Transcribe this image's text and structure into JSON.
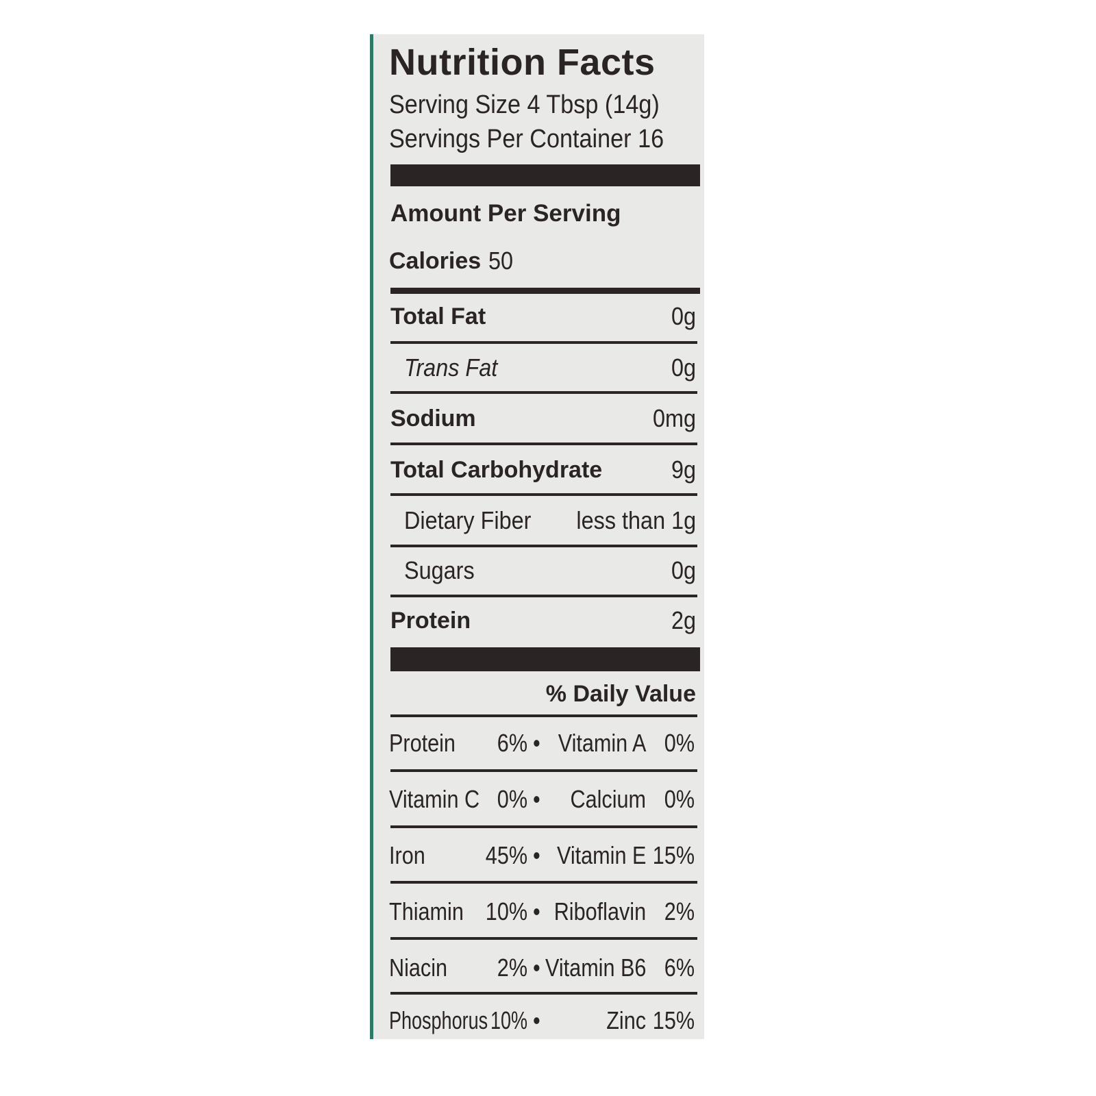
{
  "label": {
    "title": "Nutrition Facts",
    "serving_size": "Serving Size 4 Tbsp (14g)",
    "servings_per_container": "Servings Per Container 16",
    "amount_per_serving": "Amount Per Serving",
    "calories_label": "Calories",
    "calories_value": "50",
    "nutrients": [
      {
        "name": "Total Fat",
        "value": "0g",
        "bold": true
      },
      {
        "name": "Trans Fat",
        "value": "0g",
        "bold": false
      },
      {
        "name": "Sodium",
        "value": "0mg",
        "bold": true
      },
      {
        "name": "Total Carbohydrate",
        "value": "9g",
        "bold": true
      },
      {
        "name": "Dietary Fiber",
        "value": "less than 1g",
        "bold": false
      },
      {
        "name": "Sugars",
        "value": "0g",
        "bold": false
      },
      {
        "name": "Protein",
        "value": "2g",
        "bold": true
      }
    ],
    "daily_value_header": "% Daily Value",
    "bullet": "•",
    "vitamins": [
      {
        "left_name": "Protein",
        "left_value": "6%",
        "right_name": "Vitamin A",
        "right_value": "0%"
      },
      {
        "left_name": "Vitamin C",
        "left_value": "0%",
        "right_name": "Calcium",
        "right_value": "0%"
      },
      {
        "left_name": "Iron",
        "left_value": "45%",
        "right_name": "Vitamin E",
        "right_value": "15%"
      },
      {
        "left_name": "Thiamin",
        "left_value": "10%",
        "right_name": "Riboflavin",
        "right_value": "2%"
      },
      {
        "left_name": "Niacin",
        "left_value": "2%",
        "right_name": "Vitamin B6",
        "right_value": "6%"
      },
      {
        "left_name": "Phosphorus",
        "left_value": "10%",
        "right_name": "Zinc",
        "right_value": "15%"
      }
    ]
  }
}
